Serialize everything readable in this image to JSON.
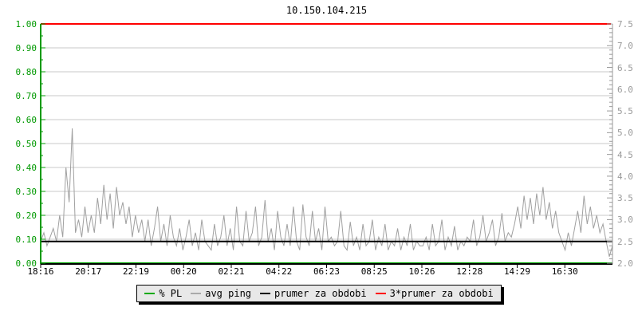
{
  "page": {
    "background": "#ffffff"
  },
  "chart_data": {
    "type": "line",
    "title": "10.150.104.215",
    "grid": true,
    "legend_position": "bottom",
    "x_ticks": [
      "18:16",
      "20:17",
      "22:19",
      "00:20",
      "02:21",
      "04:22",
      "06:23",
      "08:25",
      "10:26",
      "12:28",
      "14:29",
      "16:30"
    ],
    "left_axis": {
      "ticks": [
        "1.00",
        "0.90",
        "0.80",
        "0.70",
        "0.60",
        "0.50",
        "0.40",
        "0.30",
        "0.20",
        "0.10",
        "0.00"
      ],
      "range": [
        0.0,
        1.0
      ],
      "color": "#009900"
    },
    "right_axis": {
      "ticks": [
        "7.5",
        "7.0",
        "6.5",
        "6.0",
        "5.5",
        "5.0",
        "4.5",
        "4.0",
        "3.5",
        "3.0",
        "2.5",
        "2.0"
      ],
      "range": [
        2.0,
        7.5
      ],
      "color": "#999999"
    },
    "grid_color": "#c8c8c8",
    "series": [
      {
        "name": "% PL",
        "color": "#00aa00",
        "type": "constant",
        "axis": "left",
        "value": 0.0
      },
      {
        "name": "avg ping",
        "color": "#a0a0a0",
        "type": "line",
        "axis": "right",
        "values": [
          2.5,
          2.7,
          2.4,
          2.6,
          2.8,
          2.5,
          3.1,
          2.6,
          4.2,
          3.4,
          5.1,
          2.7,
          3.0,
          2.6,
          3.3,
          2.7,
          3.1,
          2.7,
          3.5,
          2.9,
          3.8,
          3.0,
          3.6,
          2.8,
          3.75,
          3.1,
          3.4,
          2.9,
          3.3,
          2.6,
          3.1,
          2.7,
          3.0,
          2.5,
          3.0,
          2.4,
          2.8,
          3.3,
          2.5,
          2.9,
          2.4,
          3.1,
          2.6,
          2.4,
          2.8,
          2.3,
          2.6,
          3.0,
          2.4,
          2.7,
          2.3,
          3.0,
          2.5,
          2.4,
          2.3,
          2.9,
          2.4,
          2.6,
          3.1,
          2.4,
          2.8,
          2.3,
          3.3,
          2.5,
          2.4,
          3.2,
          2.5,
          2.7,
          3.3,
          2.4,
          2.6,
          3.45,
          2.5,
          2.8,
          2.3,
          3.2,
          2.6,
          2.4,
          2.9,
          2.4,
          3.3,
          2.5,
          2.3,
          3.35,
          2.6,
          2.4,
          3.2,
          2.5,
          2.8,
          2.3,
          3.3,
          2.5,
          2.6,
          2.4,
          2.5,
          3.2,
          2.4,
          2.3,
          2.95,
          2.4,
          2.6,
          2.3,
          2.9,
          2.4,
          2.5,
          3.0,
          2.3,
          2.6,
          2.4,
          2.9,
          2.3,
          2.5,
          2.4,
          2.8,
          2.3,
          2.6,
          2.4,
          2.9,
          2.3,
          2.5,
          2.4,
          2.4,
          2.6,
          2.3,
          2.9,
          2.4,
          2.5,
          3.0,
          2.3,
          2.6,
          2.4,
          2.85,
          2.3,
          2.5,
          2.4,
          2.6,
          2.5,
          3.0,
          2.4,
          2.6,
          3.1,
          2.5,
          2.7,
          3.0,
          2.4,
          2.6,
          3.15,
          2.5,
          2.7,
          2.6,
          2.9,
          3.3,
          2.8,
          3.55,
          3.0,
          3.5,
          2.9,
          3.6,
          3.1,
          3.75,
          3.0,
          3.4,
          2.8,
          3.2,
          2.7,
          2.5,
          2.3,
          2.7,
          2.4,
          2.8,
          3.2,
          2.7,
          3.55,
          2.9,
          3.3,
          2.8,
          3.1,
          2.7,
          2.9,
          2.5,
          2.15,
          2.4
        ]
      },
      {
        "name": "prumer za obdobi",
        "color": "#000000",
        "type": "constant",
        "axis": "right",
        "value": 2.5
      },
      {
        "name": "3*prumer za obdobi",
        "color": "#ff0000",
        "type": "constant",
        "axis": "right",
        "value": 7.5
      }
    ],
    "legend": [
      {
        "label": "% PL",
        "color": "#00aa00"
      },
      {
        "label": "avg ping",
        "color": "#aaaaaa"
      },
      {
        "label": "prumer za obdobi",
        "color": "#000000"
      },
      {
        "label": "3*prumer za obdobi",
        "color": "#ff0000"
      }
    ]
  }
}
